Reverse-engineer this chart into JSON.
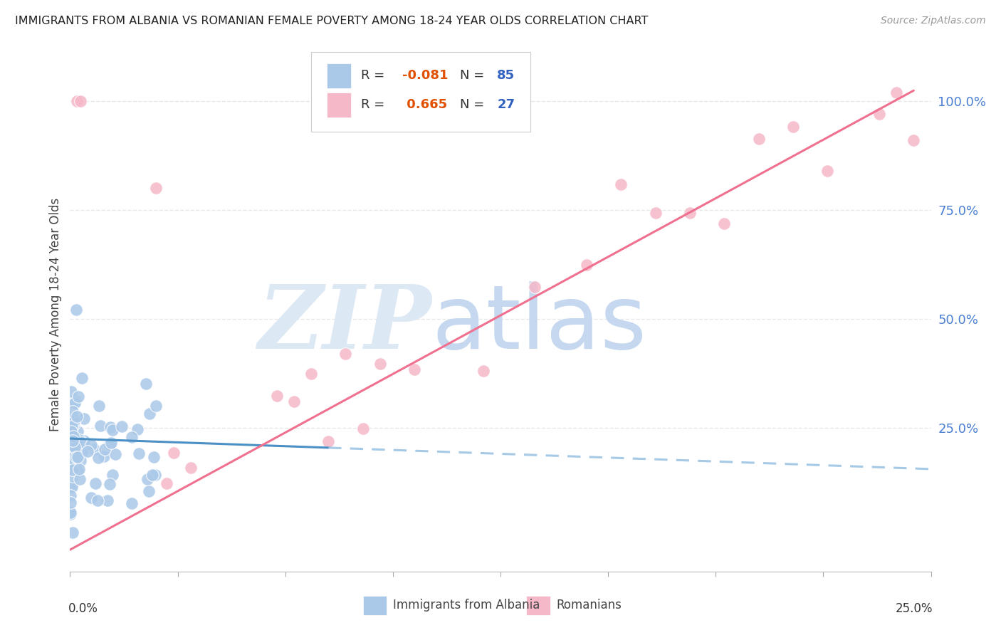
{
  "title": "IMMIGRANTS FROM ALBANIA VS ROMANIAN FEMALE POVERTY AMONG 18-24 YEAR OLDS CORRELATION CHART",
  "source": "Source: ZipAtlas.com",
  "ylabel": "Female Poverty Among 18-24 Year Olds",
  "xlim": [
    0.0,
    0.25
  ],
  "ylim": [
    -0.08,
    1.1
  ],
  "albania_R": -0.081,
  "albania_N": 85,
  "romania_R": 0.665,
  "romania_N": 27,
  "albania_color": "#aac8e8",
  "albania_line_color": "#4a90c4",
  "albania_line_color_dash": "#90bce0",
  "romania_color": "#f5b8c8",
  "romania_line_color": "#f07090",
  "watermark_zip": "ZIP",
  "watermark_atlas": "atlas",
  "watermark_color_zip": "#dde8f5",
  "watermark_color_atlas": "#c5d8f0",
  "background_color": "#ffffff",
  "grid_color": "#e8e8e8",
  "title_color": "#222222",
  "source_color": "#999999",
  "ylabel_color": "#444444",
  "right_tick_color": "#4a7fd4",
  "legend_text_color": "#333333",
  "legend_R_color": "#e05000",
  "legend_N_color": "#3060c0",
  "bottom_label_color": "#444444"
}
